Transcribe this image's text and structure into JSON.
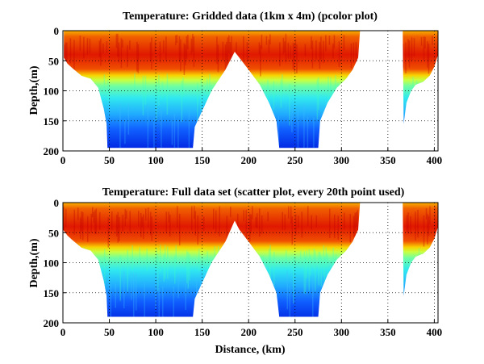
{
  "chart_data": [
    {
      "type": "heatmap",
      "title": "Temperature: Gridded data (1km x 4m) (pcolor plot)",
      "xlabel": "",
      "ylabel": "Depth,(m)",
      "xlim": [
        0,
        404
      ],
      "ylim": [
        200,
        0
      ],
      "y_reversed": true,
      "xticks": [
        "0",
        "50",
        "100",
        "150",
        "200",
        "250",
        "300",
        "350",
        "400"
      ],
      "yticks": [
        "0",
        "50",
        "100",
        "150",
        "200"
      ],
      "grid": true,
      "colormap": "jet",
      "data_extent": {
        "segments": [
          {
            "distance": [
              1,
              5,
              10,
              20,
              30,
              38,
              44,
              47,
              48,
              140,
              142,
              148,
              160,
              175,
              185,
              190,
              200,
              212,
              222,
              230,
              233,
              275,
              277,
              285,
              295,
              305,
              312,
              318,
              320
            ],
            "bottom_depth": [
              45,
              55,
              62,
              75,
              80,
              95,
              130,
              155,
              195,
              195,
              160,
              140,
              100,
              65,
              35,
              45,
              65,
              90,
              120,
              150,
              195,
              195,
              150,
              120,
              95,
              80,
              65,
              45,
              0
            ]
          },
          {
            "distance": [
              366,
              367,
              370,
              375,
              380,
              388,
              395,
              400,
              404
            ],
            "bottom_depth": [
              0,
              155,
              120,
              100,
              90,
              85,
              75,
              60,
              40
            ]
          }
        ]
      }
    },
    {
      "type": "scatter",
      "title": "Temperature: Full data set (scatter plot, every 20th point used)",
      "xlabel": "Distance, (km)",
      "ylabel": "Depth,(m)",
      "xlim": [
        0,
        404
      ],
      "ylim": [
        200,
        0
      ],
      "y_reversed": true,
      "xticks": [
        "0",
        "50",
        "100",
        "150",
        "200",
        "250",
        "300",
        "350",
        "400"
      ],
      "yticks": [
        "0",
        "50",
        "100",
        "150",
        "200"
      ],
      "grid": true,
      "colormap": "jet",
      "data_extent": {
        "segments": [
          {
            "distance": [
              0,
              5,
              10,
              20,
              30,
              38,
              44,
              47,
              48,
              140,
              142,
              148,
              160,
              175,
              185,
              190,
              200,
              212,
              222,
              230,
              233,
              275,
              277,
              285,
              295,
              305,
              312,
              318,
              320
            ],
            "bottom_depth": [
              45,
              55,
              62,
              75,
              80,
              95,
              130,
              155,
              190,
              190,
              160,
              140,
              100,
              65,
              30,
              45,
              65,
              90,
              120,
              150,
              190,
              190,
              150,
              120,
              95,
              80,
              65,
              45,
              0
            ]
          },
          {
            "distance": [
              366,
              367,
              370,
              375,
              380,
              388,
              395,
              400,
              404
            ],
            "bottom_depth": [
              0,
              155,
              120,
              100,
              90,
              85,
              75,
              60,
              40
            ]
          }
        ]
      }
    }
  ]
}
